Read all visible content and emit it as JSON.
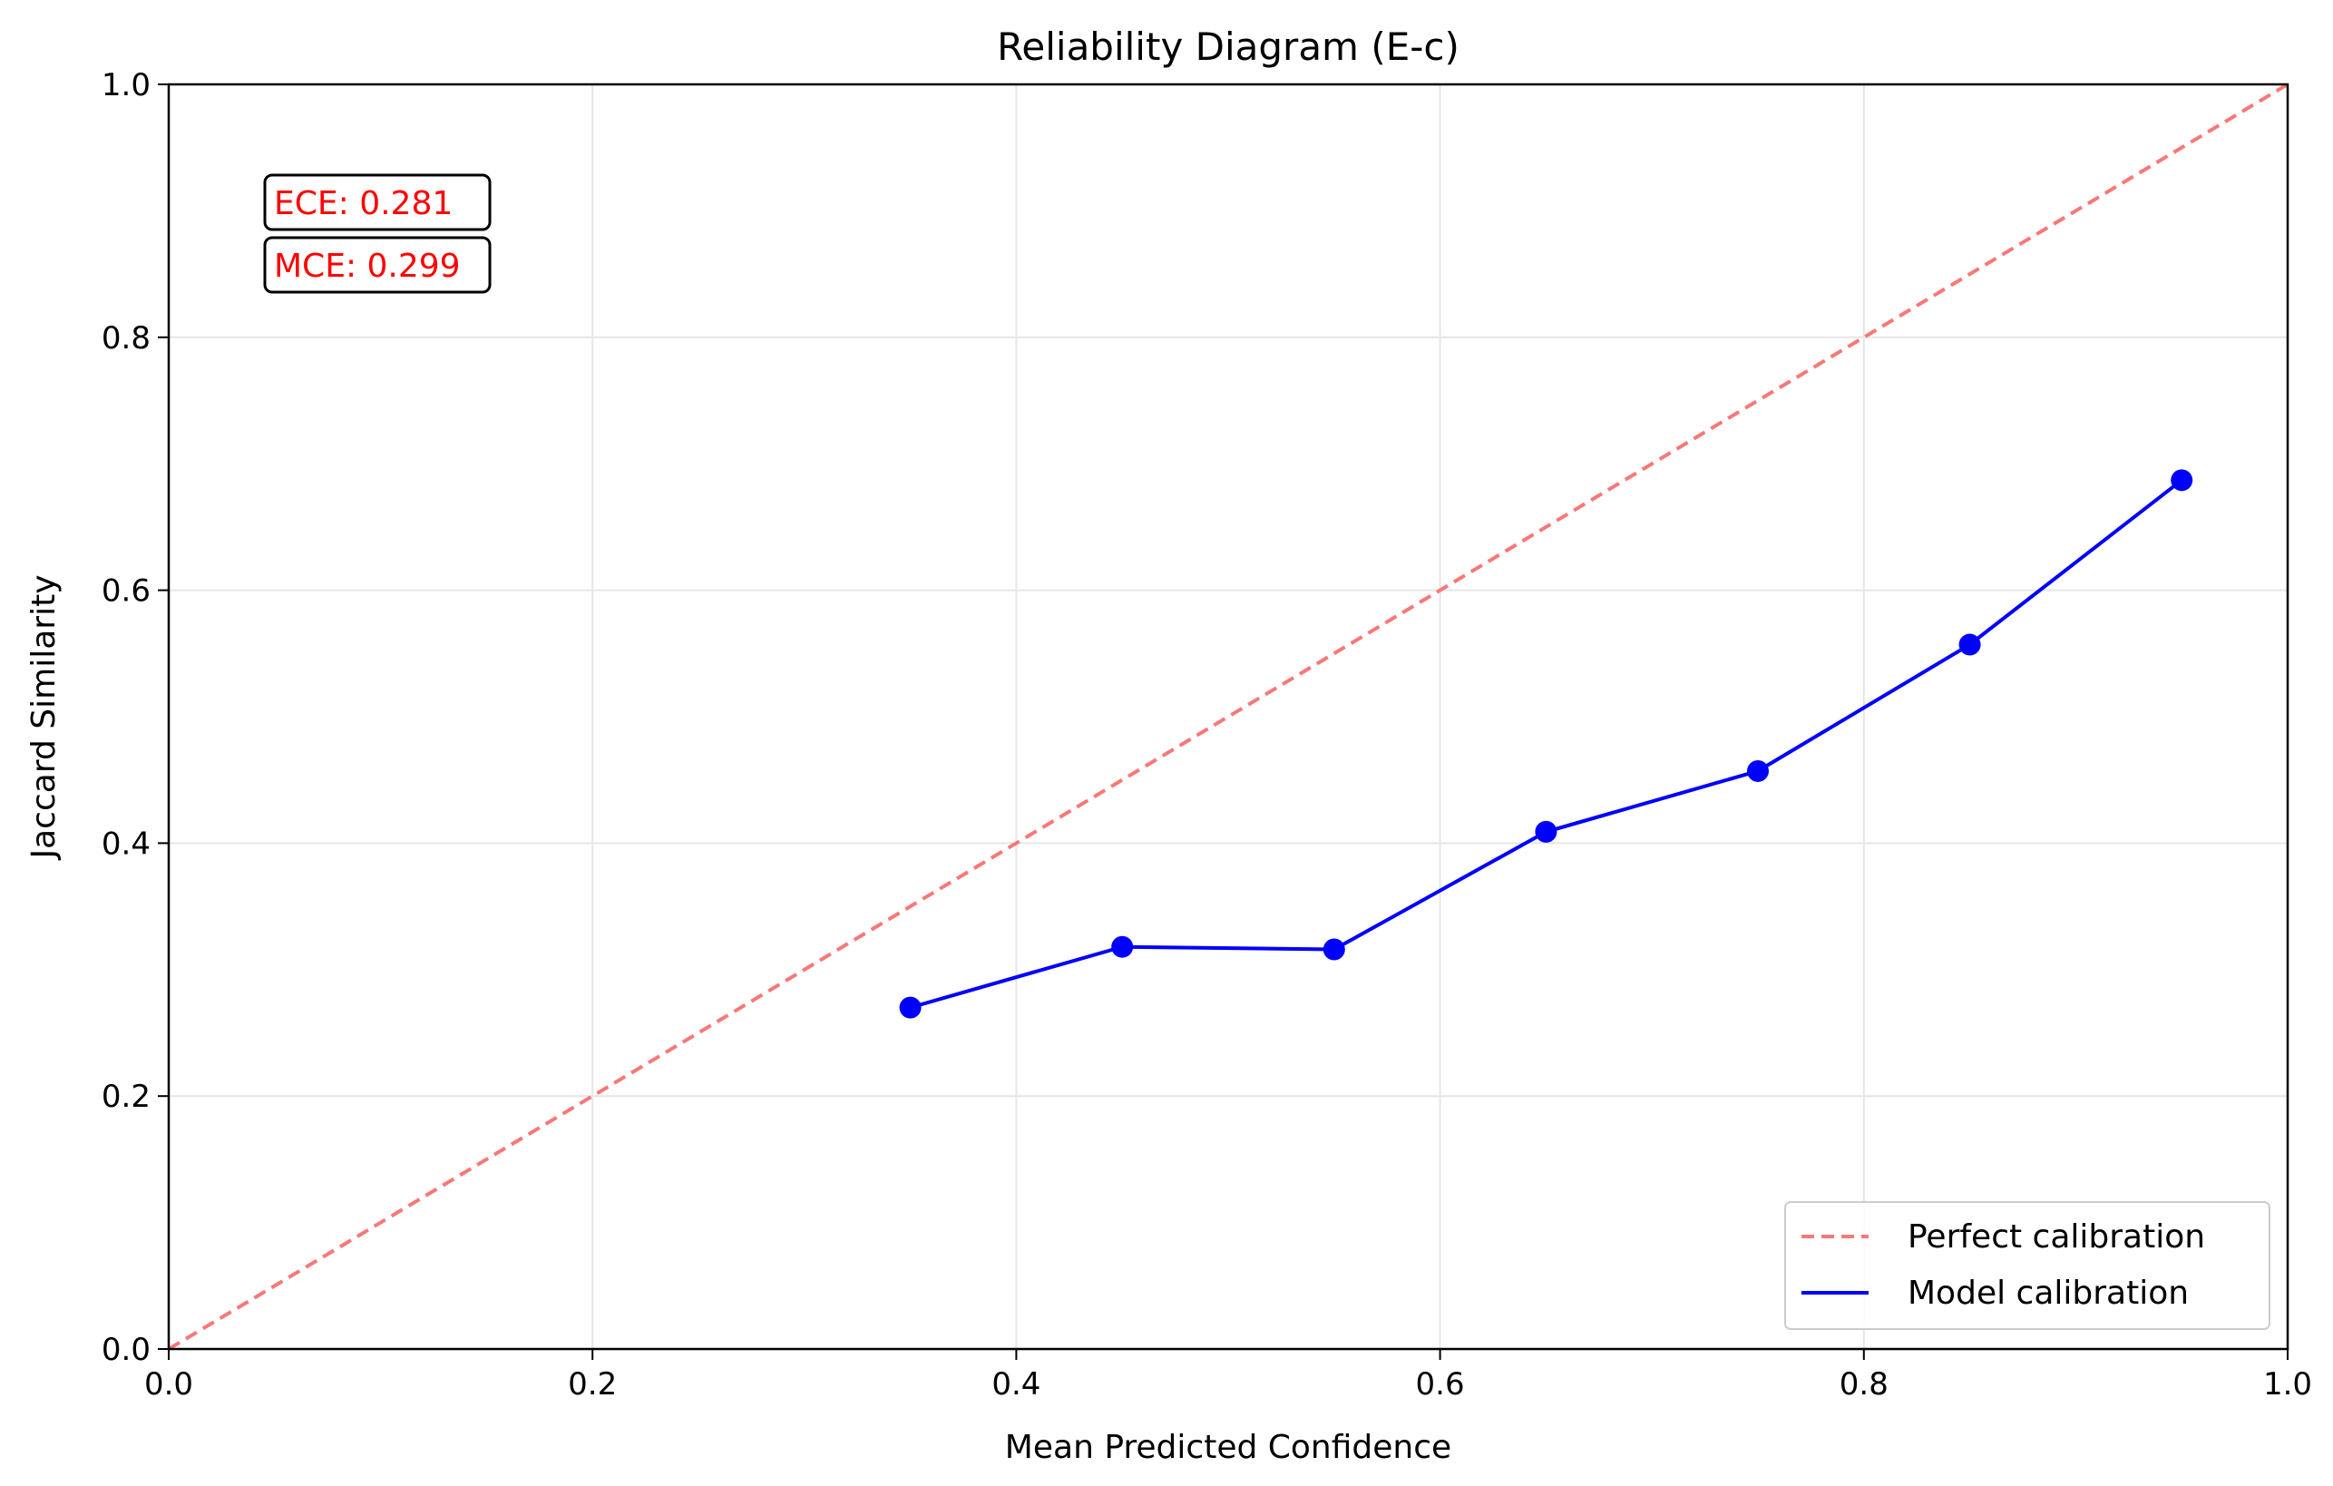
{
  "chart_data": {
    "type": "line",
    "title": "Reliability Diagram (E-c)",
    "xlabel": "Mean Predicted Confidence",
    "ylabel": "Jaccard Similarity",
    "xlim": [
      0.0,
      1.0
    ],
    "ylim": [
      0.0,
      1.0
    ],
    "grid": true,
    "legend_position": "lower-right",
    "xticks": [
      "0.0",
      "0.2",
      "0.4",
      "0.6",
      "0.8",
      "1.0"
    ],
    "yticks": [
      "0.0",
      "0.2",
      "0.4",
      "0.6",
      "0.8",
      "1.0"
    ],
    "series": [
      {
        "name": "Perfect calibration",
        "style": "dashed",
        "color": "#f87878",
        "x": [
          0.0,
          1.0
        ],
        "y": [
          0.0,
          1.0
        ]
      },
      {
        "name": "Model calibration",
        "style": "solid-markers",
        "color": "#0000ff",
        "x": [
          0.35,
          0.45,
          0.55,
          0.65,
          0.75,
          0.85,
          0.95
        ],
        "y": [
          0.27,
          0.318,
          0.316,
          0.409,
          0.457,
          0.557,
          0.687
        ]
      }
    ],
    "annotations": [
      {
        "text": "ECE: 0.281",
        "color": "#ff0000"
      },
      {
        "text": "MCE: 0.299",
        "color": "#ff0000"
      }
    ]
  }
}
